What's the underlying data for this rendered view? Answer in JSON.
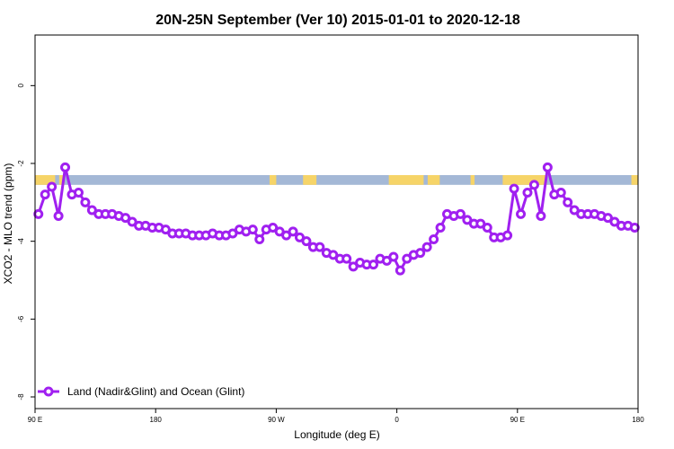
{
  "chart_data": {
    "type": "line",
    "title": "20N-25N September (Ver 10)   2015-01-01 to 2020-12-18",
    "xlabel": "Longitude (deg E)",
    "ylabel": "XCO2 - MLO trend (ppm)",
    "xlim": [
      90,
      540
    ],
    "ylim": [
      -8.3,
      1.3
    ],
    "x_ticks": [
      {
        "value": 90,
        "label": "90 E"
      },
      {
        "value": 180,
        "label": "180"
      },
      {
        "value": 270,
        "label": "90 W"
      },
      {
        "value": 360,
        "label": "0"
      },
      {
        "value": 450,
        "label": "90 E"
      },
      {
        "value": 540,
        "label": "180"
      }
    ],
    "y_ticks": [
      {
        "value": 0,
        "label": "0"
      },
      {
        "value": -2,
        "label": "-2"
      },
      {
        "value": -4,
        "label": "-4"
      },
      {
        "value": -6,
        "label": "-6"
      },
      {
        "value": -8,
        "label": "-8"
      }
    ],
    "map_strip": {
      "y_top": -2.3,
      "y_bottom": -2.55,
      "ocean_color": "#a4b8d6",
      "land_color": "#f6d468"
    },
    "series": [
      {
        "name": "Land (Nadir&Glint) and Ocean (Glint)",
        "color": "#a020f0",
        "x": [
          92.5,
          97.5,
          102.5,
          107.5,
          112.5,
          117.5,
          122.5,
          127.5,
          132.5,
          137.5,
          142.5,
          147.5,
          152.5,
          157.5,
          162.5,
          167.5,
          172.5,
          177.5,
          182.5,
          187.5,
          192.5,
          197.5,
          202.5,
          207.5,
          212.5,
          217.5,
          222.5,
          227.5,
          232.5,
          237.5,
          242.5,
          247.5,
          252.5,
          257.5,
          262.5,
          267.5,
          272.5,
          277.5,
          282.5,
          287.5,
          292.5,
          297.5,
          302.5,
          307.5,
          312.5,
          317.5,
          322.5,
          327.5,
          332.5,
          337.5,
          342.5,
          347.5,
          352.5,
          357.5,
          362.5,
          367.5,
          372.5,
          377.5,
          382.5,
          387.5,
          392.5,
          397.5,
          402.5,
          407.5,
          412.5,
          417.5,
          422.5,
          427.5,
          432.5,
          437.5,
          442.5,
          447.5,
          452.5,
          457.5,
          462.5,
          467.5,
          472.5,
          477.5,
          482.5,
          487.5,
          492.5,
          497.5,
          502.5,
          507.5,
          512.5,
          517.5,
          522.5,
          527.5,
          532.5,
          537.5
        ],
        "y": [
          -3.3,
          -2.8,
          -2.6,
          -3.35,
          -2.1,
          -2.8,
          -2.75,
          -3.0,
          -3.2,
          -3.3,
          -3.3,
          -3.3,
          -3.35,
          -3.4,
          -3.5,
          -3.6,
          -3.6,
          -3.65,
          -3.65,
          -3.7,
          -3.8,
          -3.8,
          -3.8,
          -3.85,
          -3.85,
          -3.85,
          -3.8,
          -3.85,
          -3.85,
          -3.8,
          -3.7,
          -3.75,
          -3.7,
          -3.95,
          -3.7,
          -3.65,
          -3.75,
          -3.85,
          -3.75,
          -3.9,
          -4.0,
          -4.15,
          -4.15,
          -4.3,
          -4.35,
          -4.45,
          -4.45,
          -4.65,
          -4.55,
          -4.6,
          -4.6,
          -4.45,
          -4.5,
          -4.4,
          -4.75,
          -4.45,
          -4.35,
          -4.3,
          -4.15,
          -3.95,
          -3.65,
          -3.3,
          -3.35,
          -3.3,
          -3.45,
          -3.55,
          -3.55,
          -3.65,
          -3.9,
          -3.9,
          -3.85,
          -2.65,
          -3.3,
          -2.75,
          -2.55,
          -3.35,
          -2.1,
          -2.8,
          -2.75,
          -3.0,
          -3.2,
          -3.3,
          -3.3,
          -3.3,
          -3.35,
          -3.4,
          -3.5,
          -3.6,
          -3.6,
          -3.65
        ]
      }
    ],
    "legend": {
      "position": "bottom-left"
    },
    "grid": false
  }
}
